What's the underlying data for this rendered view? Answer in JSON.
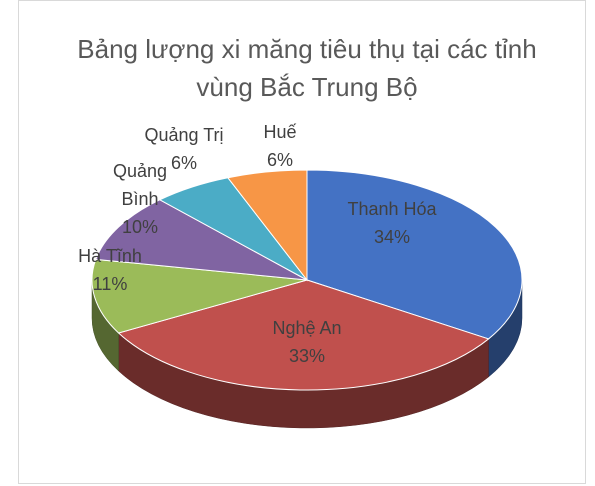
{
  "chart_data": {
    "type": "pie3d",
    "title": "Bảng lượng xi măng tiêu thụ tại các tỉnh vùng Bắc Trung Bộ",
    "categories": [
      "Thanh Hóa",
      "Nghệ An",
      "Hà Tĩnh",
      "Quảng Bình",
      "Quảng Trị",
      "Huế"
    ],
    "values": [
      34,
      33,
      11,
      10,
      6,
      6
    ],
    "value_labels": [
      "34%",
      "33%",
      "11%",
      "10%",
      "6%",
      "6%"
    ],
    "colors": [
      "#4472c4",
      "#c0504d",
      "#9bbb59",
      "#8064a2",
      "#4bacc6",
      "#f79646"
    ]
  }
}
